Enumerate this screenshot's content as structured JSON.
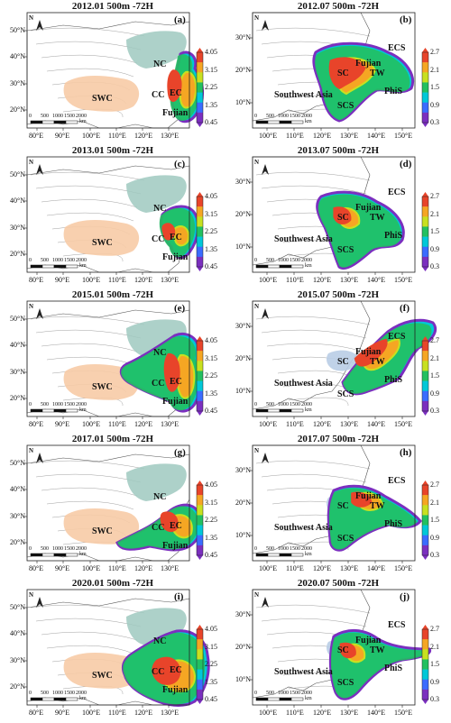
{
  "figure": {
    "scale_labels": [
      "0",
      "500",
      "1000",
      "1500",
      "2000"
    ],
    "scale_unit": "km",
    "north_label": "N",
    "colors": {
      "region_nc": "#9fc9bf",
      "region_swc": "#f7cba6",
      "region_sc": "#b9cde6",
      "plume": [
        "#7b2fbf",
        "#3b6cff",
        "#00c8d8",
        "#22c060",
        "#c8e020",
        "#f5a623",
        "#e8442a"
      ]
    }
  },
  "panels": [
    {
      "id": "a",
      "label": "(a)",
      "title": "2012.01 500m -72H",
      "season": "winter",
      "lat_labels": [
        "50°N",
        "40°N",
        "30°N",
        "20°N"
      ],
      "lon_labels": [
        "80°E",
        "90°E",
        "100°E",
        "110°E",
        "120°E",
        "130°E"
      ],
      "regions": [
        "NC",
        "SWC",
        "CC",
        "EC",
        "Fujian"
      ],
      "colorbar_ticks": [
        "4.05",
        "3.15",
        "2.25",
        "1.35",
        "0.45"
      ]
    },
    {
      "id": "b",
      "label": "(b)",
      "title": "2012.07 500m -72H",
      "season": "summer",
      "lat_labels": [
        "30°N",
        "20°N",
        "10°N"
      ],
      "lon_labels": [
        "100°E",
        "110°E",
        "120°E",
        "130°E",
        "140°E",
        "150°E"
      ],
      "regions": [
        "ECS",
        "Fujian",
        "SC",
        "TW",
        "PhiS",
        "Southwest Asia",
        "SCS"
      ],
      "colorbar_ticks": [
        "2.7",
        "2.1",
        "1.5",
        "0.9",
        "0.3"
      ]
    },
    {
      "id": "c",
      "label": "(c)",
      "title": "2013.01 500m -72H",
      "season": "winter",
      "lat_labels": [
        "50°N",
        "40°N",
        "30°N",
        "20°N"
      ],
      "lon_labels": [
        "80°E",
        "90°E",
        "100°E",
        "110°E",
        "120°E",
        "130°E"
      ],
      "regions": [
        "NC",
        "SWC",
        "CC",
        "EC",
        "Fujian"
      ],
      "colorbar_ticks": [
        "4.05",
        "3.15",
        "2.25",
        "1.35",
        "0.45"
      ]
    },
    {
      "id": "d",
      "label": "(d)",
      "title": "2013.07 500m -72H",
      "season": "summer",
      "lat_labels": [
        "30°N",
        "20°N",
        "10°N"
      ],
      "lon_labels": [
        "100°E",
        "110°E",
        "120°E",
        "130°E",
        "140°E",
        "150°E"
      ],
      "regions": [
        "ECS",
        "Fujian",
        "SC",
        "TW",
        "PhiS",
        "Southwest Asia",
        "SCS"
      ],
      "colorbar_ticks": [
        "2.7",
        "2.1",
        "1.5",
        "0.9",
        "0.3"
      ]
    },
    {
      "id": "e",
      "label": "(e)",
      "title": "2015.01 500m -72H",
      "season": "winter",
      "lat_labels": [
        "50°N",
        "40°N",
        "30°N",
        "20°N"
      ],
      "lon_labels": [
        "80°E",
        "90°E",
        "100°E",
        "110°E",
        "120°E",
        "130°E"
      ],
      "regions": [
        "NC",
        "SWC",
        "CC",
        "EC",
        "Fujian"
      ],
      "colorbar_ticks": [
        "4.05",
        "3.15",
        "2.25",
        "1.35",
        "0.45"
      ]
    },
    {
      "id": "f",
      "label": "(f)",
      "title": "2015.07 500m -72H",
      "season": "summer",
      "lat_labels": [
        "30°N",
        "20°N",
        "10°N"
      ],
      "lon_labels": [
        "100°E",
        "110°E",
        "120°E",
        "130°E",
        "140°E",
        "150°E"
      ],
      "regions": [
        "ECS",
        "Fujian",
        "SC",
        "TW",
        "PhiS",
        "Southwest Asia",
        "SCS"
      ],
      "colorbar_ticks": [
        "2.7",
        "2.1",
        "1.5",
        "0.9",
        "0.3"
      ]
    },
    {
      "id": "g",
      "label": "(g)",
      "title": "2017.01 500m -72H",
      "season": "winter",
      "lat_labels": [
        "50°N",
        "40°N",
        "30°N",
        "20°N"
      ],
      "lon_labels": [
        "80°E",
        "90°E",
        "100°E",
        "110°E",
        "120°E",
        "130°E"
      ],
      "regions": [
        "NC",
        "SWC",
        "CC",
        "EC",
        "Fujian"
      ],
      "colorbar_ticks": [
        "4.05",
        "3.15",
        "2.25",
        "1.35",
        "0.45"
      ]
    },
    {
      "id": "h",
      "label": "(h)",
      "title": "2017.07 500m -72H",
      "season": "summer",
      "lat_labels": [
        "30°N",
        "20°N",
        "10°N"
      ],
      "lon_labels": [
        "100°E",
        "110°E",
        "120°E",
        "130°E",
        "140°E",
        "150°E"
      ],
      "regions": [
        "ECS",
        "Fujian",
        "SC",
        "TW",
        "PhiS",
        "Southwest Asia",
        "SCS"
      ],
      "colorbar_ticks": [
        "2.7",
        "2.1",
        "1.5",
        "0.9",
        "0.3"
      ]
    },
    {
      "id": "i",
      "label": "(i)",
      "title": "2020.01 500m -72H",
      "season": "winter",
      "lat_labels": [
        "50°N",
        "40°N",
        "30°N",
        "20°N"
      ],
      "lon_labels": [
        "80°E",
        "90°E",
        "100°E",
        "110°E",
        "120°E",
        "130°E"
      ],
      "regions": [
        "NC",
        "SWC",
        "CC",
        "EC",
        "Fujian"
      ],
      "colorbar_ticks": [
        "4.05",
        "3.15",
        "2.25",
        "1.35",
        "0.45"
      ]
    },
    {
      "id": "j",
      "label": "(j)",
      "title": "2020.07 500m -72H",
      "season": "summer",
      "lat_labels": [
        "30°N",
        "20°N",
        "10°N"
      ],
      "lon_labels": [
        "100°E",
        "110°E",
        "120°E",
        "130°E",
        "140°E",
        "150°E"
      ],
      "regions": [
        "ECS",
        "Fujian",
        "SC",
        "TW",
        "PhiS",
        "Southwest Asia",
        "SCS"
      ],
      "colorbar_ticks": [
        "2.7",
        "2.1",
        "1.5",
        "0.9",
        "0.3"
      ]
    }
  ]
}
